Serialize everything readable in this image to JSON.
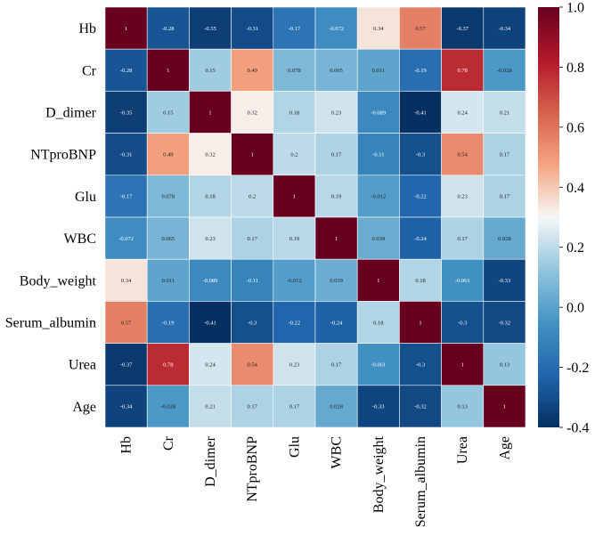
{
  "chart_data": {
    "type": "heatmap",
    "title": "",
    "xlabel": "",
    "ylabel": "",
    "variables": [
      "Hb",
      "Cr",
      "D_dimer",
      "NTproBNP",
      "Glu",
      "WBC",
      "Body_weight",
      "Serum_albumin",
      "Urea",
      "Age"
    ],
    "matrix": [
      [
        1,
        -0.28,
        -0.35,
        -0.31,
        -0.17,
        -0.072,
        0.34,
        0.57,
        -0.37,
        -0.34
      ],
      [
        -0.28,
        1,
        0.15,
        0.49,
        0.078,
        0.065,
        0.011,
        -0.19,
        0.78,
        -0.028
      ],
      [
        -0.35,
        0.15,
        1,
        0.32,
        0.18,
        0.23,
        -0.089,
        -0.41,
        0.24,
        0.21
      ],
      [
        -0.31,
        0.49,
        0.32,
        1,
        0.2,
        0.17,
        -0.11,
        -0.3,
        0.54,
        0.17
      ],
      [
        -0.17,
        0.078,
        0.18,
        0.2,
        1,
        0.19,
        -0.012,
        -0.22,
        0.23,
        0.17
      ],
      [
        -0.072,
        0.065,
        0.23,
        0.17,
        0.19,
        1,
        0.039,
        -0.24,
        0.17,
        0.028
      ],
      [
        0.34,
        0.011,
        -0.089,
        -0.11,
        -0.012,
        0.039,
        1,
        0.18,
        -0.061,
        -0.33
      ],
      [
        0.57,
        -0.19,
        -0.41,
        -0.3,
        -0.22,
        -0.24,
        0.18,
        1,
        -0.3,
        -0.32
      ],
      [
        -0.37,
        0.78,
        0.24,
        0.54,
        0.23,
        0.17,
        -0.061,
        -0.3,
        1,
        0.13
      ],
      [
        -0.34,
        -0.028,
        0.21,
        0.17,
        0.17,
        0.028,
        -0.33,
        -0.32,
        0.13,
        1
      ]
    ],
    "colorbar": {
      "range": [
        -0.4,
        1.0
      ],
      "ticks": [
        "1.0",
        "0.8",
        "0.6",
        "0.4",
        "0.2",
        "0.0",
        "-0.2",
        "-0.4"
      ],
      "tick_values": [
        1.0,
        0.8,
        0.6,
        0.4,
        0.2,
        0.0,
        -0.2,
        -0.4
      ],
      "colormap": "RdBu_r"
    }
  }
}
